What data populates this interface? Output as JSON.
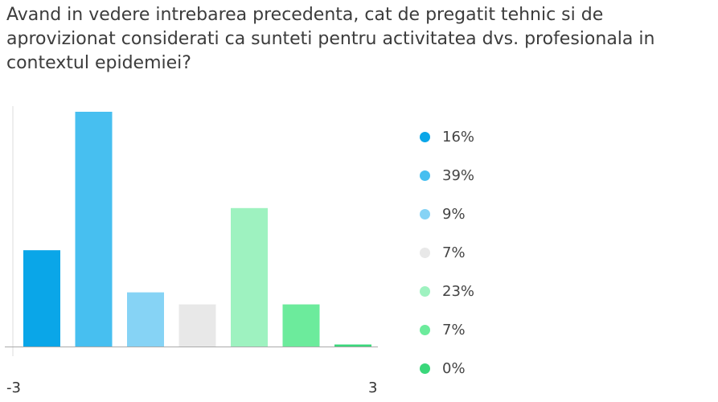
{
  "question": "Avand in vedere intrebarea precedenta, cat de pregatit tehnic si de aprovizionat considerati ca sunteti pentru activitatea dvs. profesionala in contextul epidemiei?",
  "chart_data": {
    "type": "bar",
    "title": "Avand in vedere intrebarea precedenta, cat de pregatit tehnic si de aprovizionat considerati ca sunteti pentru activitatea dvs. profesionala in contextul epidemiei?",
    "categories": [
      "16%",
      "39%",
      "9%",
      "7%",
      "23%",
      "7%",
      "0%"
    ],
    "values": [
      16,
      39,
      9,
      7,
      23,
      7,
      0
    ],
    "colors": [
      "#0aa6e8",
      "#47bff0",
      "#86d3f5",
      "#e8e8e8",
      "#9ef2c0",
      "#6ceb9c",
      "#3ad77a"
    ],
    "x_tick_labels": [
      "-3",
      "3"
    ],
    "ylim": [
      0,
      39
    ],
    "grid": false,
    "legend": "right"
  }
}
